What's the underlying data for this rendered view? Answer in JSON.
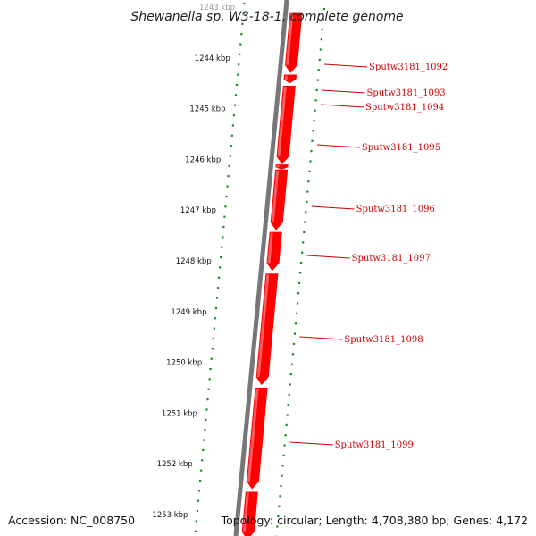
{
  "title": "Shewanella sp. W3-18-1, complete genome",
  "footer": {
    "accession": "Accession: NC_008750",
    "topology": "Topology: circular; Length: 4,708,380 bp; Genes: 4,172"
  },
  "colors": {
    "gene": "#ff0000",
    "gene_highlight": "#ff7a7a",
    "backbone": "#777777",
    "ticks": "#1a8a1a",
    "label_line": "#cc0000"
  },
  "scale": {
    "unit": "kbp",
    "ticks": [
      {
        "value": 1243,
        "label": "1243 kbp"
      },
      {
        "value": 1244,
        "label": "1244 kbp"
      },
      {
        "value": 1245,
        "label": "1245 kbp"
      },
      {
        "value": 1246,
        "label": "1246 kbp"
      },
      {
        "value": 1247,
        "label": "1247 kbp"
      },
      {
        "value": 1248,
        "label": "1248 kbp"
      },
      {
        "value": 1249,
        "label": "1249 kbp"
      },
      {
        "value": 1250,
        "label": "1250 kbp"
      },
      {
        "value": 1251,
        "label": "1251 kbp"
      },
      {
        "value": 1252,
        "label": "1252 kbp"
      },
      {
        "value": 1253,
        "label": "1253 kbp"
      }
    ]
  },
  "genes": [
    {
      "name": "Sputw3181_1092",
      "start": 1243.1,
      "end": 1244.3
    },
    {
      "name": "Sputw3181_1093",
      "start": 1244.33,
      "end": 1244.5
    },
    {
      "name": "Sputw3181_1094",
      "start": 1244.55,
      "end": 1246.1
    },
    {
      "name": "Sputw3181_1095",
      "start": 1246.1,
      "end": 1246.2
    },
    {
      "name": "Sputw3181_1096",
      "start": 1246.2,
      "end": 1247.4
    },
    {
      "name": "Sputw3181_1097",
      "start": 1247.43,
      "end": 1248.2
    },
    {
      "name": "Sputw3181_1098",
      "start": 1248.25,
      "end": 1250.45
    },
    {
      "name": "Sputw3181_1099",
      "start": 1250.5,
      "end": 1252.5
    },
    {
      "name": "",
      "start": 1252.55,
      "end": 1253.5
    }
  ]
}
